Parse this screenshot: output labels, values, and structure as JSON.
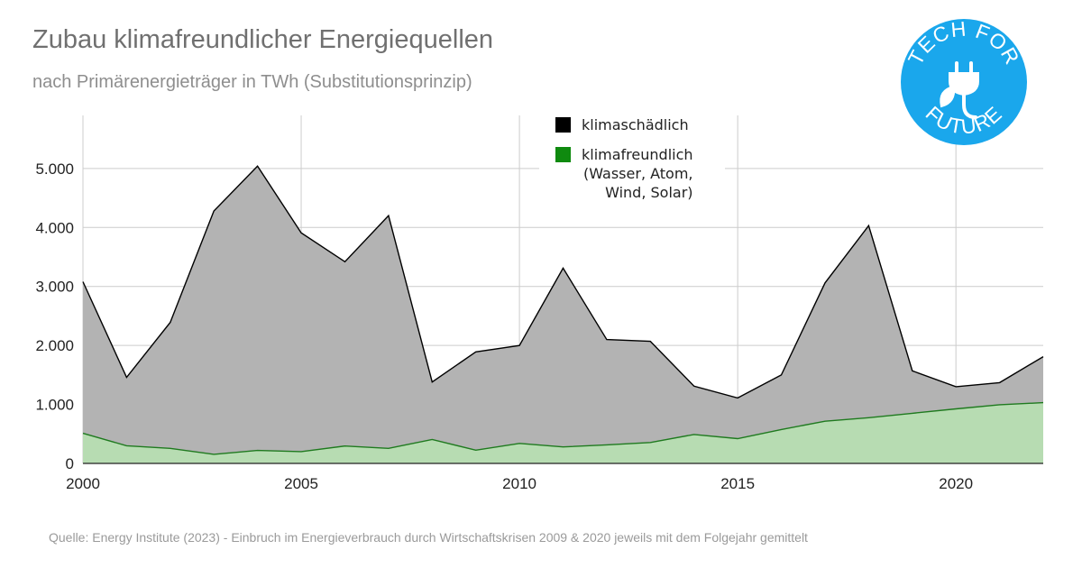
{
  "title": "Zubau klimafreundlicher Energiequellen",
  "subtitle": "nach Primärenergieträger in TWh (Substitutionsprinzip)",
  "source": "Quelle: Energy Institute (2023) - Einbruch im Energieverbrauch durch Wirtschaftskrisen 2009 & 2020 jeweils mit dem Folgejahr gemittelt",
  "logo": {
    "top_text": "TECH FOR",
    "bottom_text": "FUTURE",
    "color": "#1aa7ec",
    "icon": "plug-leaf-icon"
  },
  "colors": {
    "klimaschaedlich_fill": "#b3b3b3",
    "klimaschaedlich_line": "#000000",
    "klimafreundlich_fill": "#b7dcb2",
    "klimafreundlich_line": "#1f7a1f",
    "legend_black": "#000000",
    "legend_green": "#0f8a0f"
  },
  "chart_data": {
    "type": "area",
    "x": [
      2000,
      2001,
      2002,
      2003,
      2004,
      2005,
      2006,
      2007,
      2008,
      2009,
      2010,
      2011,
      2012,
      2013,
      2014,
      2015,
      2016,
      2017,
      2018,
      2019,
      2020,
      2021,
      2022
    ],
    "series": [
      {
        "name": "klimaschädlich",
        "values": [
          3080,
          1460,
          2390,
          4280,
          5040,
          3910,
          3420,
          4200,
          1380,
          1890,
          2000,
          3310,
          2100,
          2070,
          1310,
          1110,
          1500,
          3060,
          4030,
          1570,
          1300,
          1370,
          1810
        ]
      },
      {
        "name": "klimafreundlich\n(Wasser, Atom,\nWind, Solar)",
        "values": [
          510,
          300,
          255,
          155,
          220,
          200,
          295,
          255,
          405,
          225,
          340,
          280,
          315,
          355,
          490,
          420,
          575,
          715,
          775,
          850,
          925,
          995,
          1030
        ]
      }
    ],
    "xticks": [
      "2000",
      "2005",
      "2010",
      "2015",
      "2020"
    ],
    "yticks": [
      "0",
      "1.000",
      "2.000",
      "3.000",
      "4.000",
      "5.000"
    ],
    "xlim": [
      2000,
      2022
    ],
    "ylim": [
      0,
      5900
    ],
    "grid": true,
    "legend_position": "top-center"
  }
}
